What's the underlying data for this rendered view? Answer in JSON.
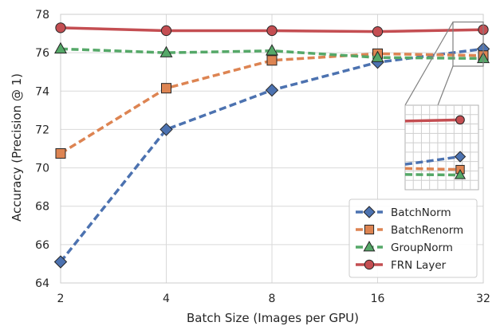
{
  "chart_data": {
    "type": "line",
    "title": "",
    "xlabel": "Batch Size (Images per GPU)",
    "ylabel": "Accuracy (Precision @ 1)",
    "x_scale": "log2",
    "x": [
      2,
      4,
      8,
      16,
      32
    ],
    "x_tick_labels": [
      "2",
      "4",
      "8",
      "16",
      "32"
    ],
    "ylim": [
      64,
      78
    ],
    "y_ticks": [
      64,
      66,
      68,
      70,
      72,
      74,
      76,
      78
    ],
    "grid": true,
    "legend_position": "lower-right",
    "series": [
      {
        "name": "BatchNorm",
        "values": [
          65.1,
          72.0,
          74.05,
          75.5,
          76.2
        ],
        "color": "#4c72b0",
        "marker": "diamond",
        "line_style": "dashed"
      },
      {
        "name": "BatchRenorm",
        "values": [
          70.75,
          74.15,
          75.6,
          75.95,
          75.85
        ],
        "color": "#dd8452",
        "marker": "square",
        "line_style": "dashed"
      },
      {
        "name": "GroupNorm",
        "values": [
          76.2,
          76.0,
          76.1,
          75.75,
          75.7
        ],
        "color": "#55a868",
        "marker": "triangle",
        "line_style": "dashed"
      },
      {
        "name": "FRN Layer",
        "values": [
          77.3,
          77.15,
          77.15,
          77.1,
          77.2
        ],
        "color": "#c44e52",
        "marker": "circle",
        "line_style": "solid"
      }
    ],
    "inset": {
      "description": "zoomed view near batch size 32",
      "x_range": [
        26,
        34
      ],
      "y_range": [
        75.3,
        77.6
      ]
    }
  }
}
